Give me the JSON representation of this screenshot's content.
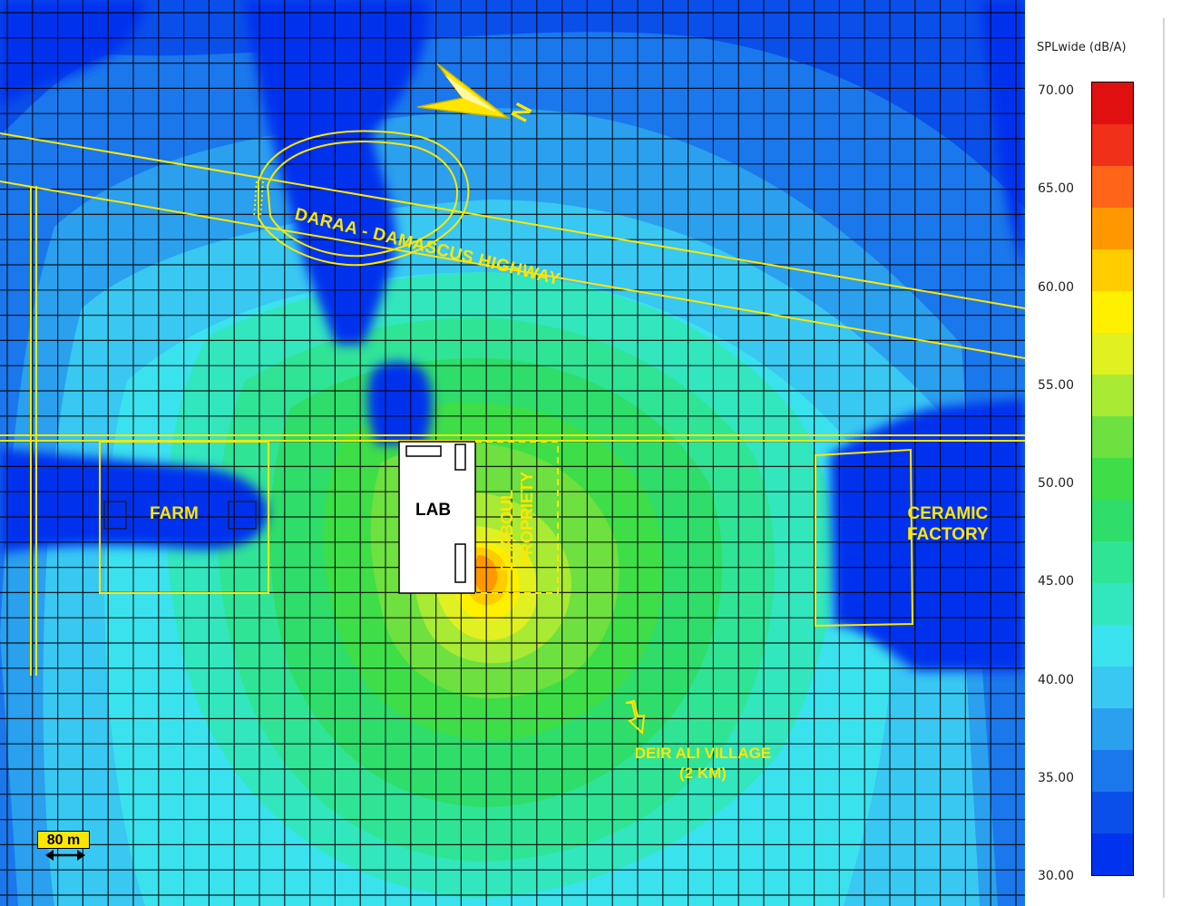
{
  "map": {
    "labels": {
      "highway": "DARAA  -  DAMASCUS HIGHWAY",
      "farm": "FARM",
      "lab": "LAB",
      "property": [
        "DAABOUL",
        "PROPRIETY"
      ],
      "ceramic_factory": [
        "CERAMIC",
        "FACTORY"
      ],
      "deir_ali": [
        "DEIR ALI VILLAGE",
        "(2 KM)"
      ],
      "north": "N"
    },
    "scale_bar": {
      "label": "80 m"
    },
    "colors": {
      "label": "#ffe600",
      "grid": "#000000",
      "building": "#ffffff"
    }
  },
  "legend": {
    "title": "SPLwide (dB/A)",
    "ticks": [
      "70.00",
      "65.00",
      "60.00",
      "55.00",
      "50.00",
      "45.00",
      "40.00",
      "35.00",
      "30.00"
    ],
    "min_db": 30,
    "max_db": 70,
    "step_db": 2.5,
    "colors": [
      "#0033ee",
      "#0a4fea",
      "#1a78ec",
      "#2aa0ee",
      "#38c8f2",
      "#3ae2ee",
      "#32e6be",
      "#30e496",
      "#2edd6a",
      "#3ede48",
      "#6ee040",
      "#a8ea34",
      "#e0f020",
      "#fff000",
      "#ffcc00",
      "#ff9800",
      "#ff6418",
      "#f03018",
      "#e01010"
    ]
  }
}
